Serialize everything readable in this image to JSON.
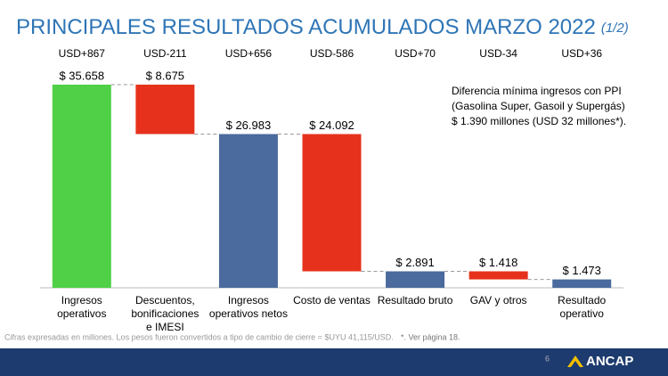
{
  "chart_data": {
    "type": "waterfall",
    "title": "PRINCIPALES RESULTADOS ACUMULADOS MARZO 2022",
    "subtitle": "(1/2)",
    "categories": [
      "Ingresos\noperativos",
      "Descuentos,\nbonificaciones\ne IMESI",
      "Ingresos\noperativos netos",
      "Costo de ventas",
      "Resultado bruto",
      "GAV y otros",
      "Resultado\noperativo"
    ],
    "measure": [
      "total",
      "relative",
      "total",
      "relative",
      "total",
      "relative",
      "total"
    ],
    "values": [
      35658,
      -8675,
      26983,
      -24092,
      2891,
      -1418,
      1473
    ],
    "value_labels": [
      "$ 35.658",
      "$ 8.675",
      "$ 26.983",
      "$ 24.092",
      "$ 2.891",
      "$ 1.418",
      "$ 1.473"
    ],
    "colors": [
      "#4fd046",
      "#e6321c",
      "#4b6a9d",
      "#e6321c",
      "#4b6a9d",
      "#e6321c",
      "#4b6a9d"
    ],
    "top_labels": [
      "USD+867",
      "USD-211",
      "USD+656",
      "USD-586",
      "USD+70",
      "USD-34",
      "USD+36"
    ],
    "annotation": [
      "Diferencia mínima ingresos con PPI",
      "(Gasolina Super, Gasoil y Supergás)",
      "$ 1.390 millones (USD 32 millones*)."
    ],
    "footnote": "Cifras expresadas en millones. Los pesos fueron convertidos a tipo de cambio de cierre = $UYU 41,115/USD.",
    "footnote2": "*. Ver página 18.",
    "page_number": "6",
    "logo": "ANCAP"
  }
}
